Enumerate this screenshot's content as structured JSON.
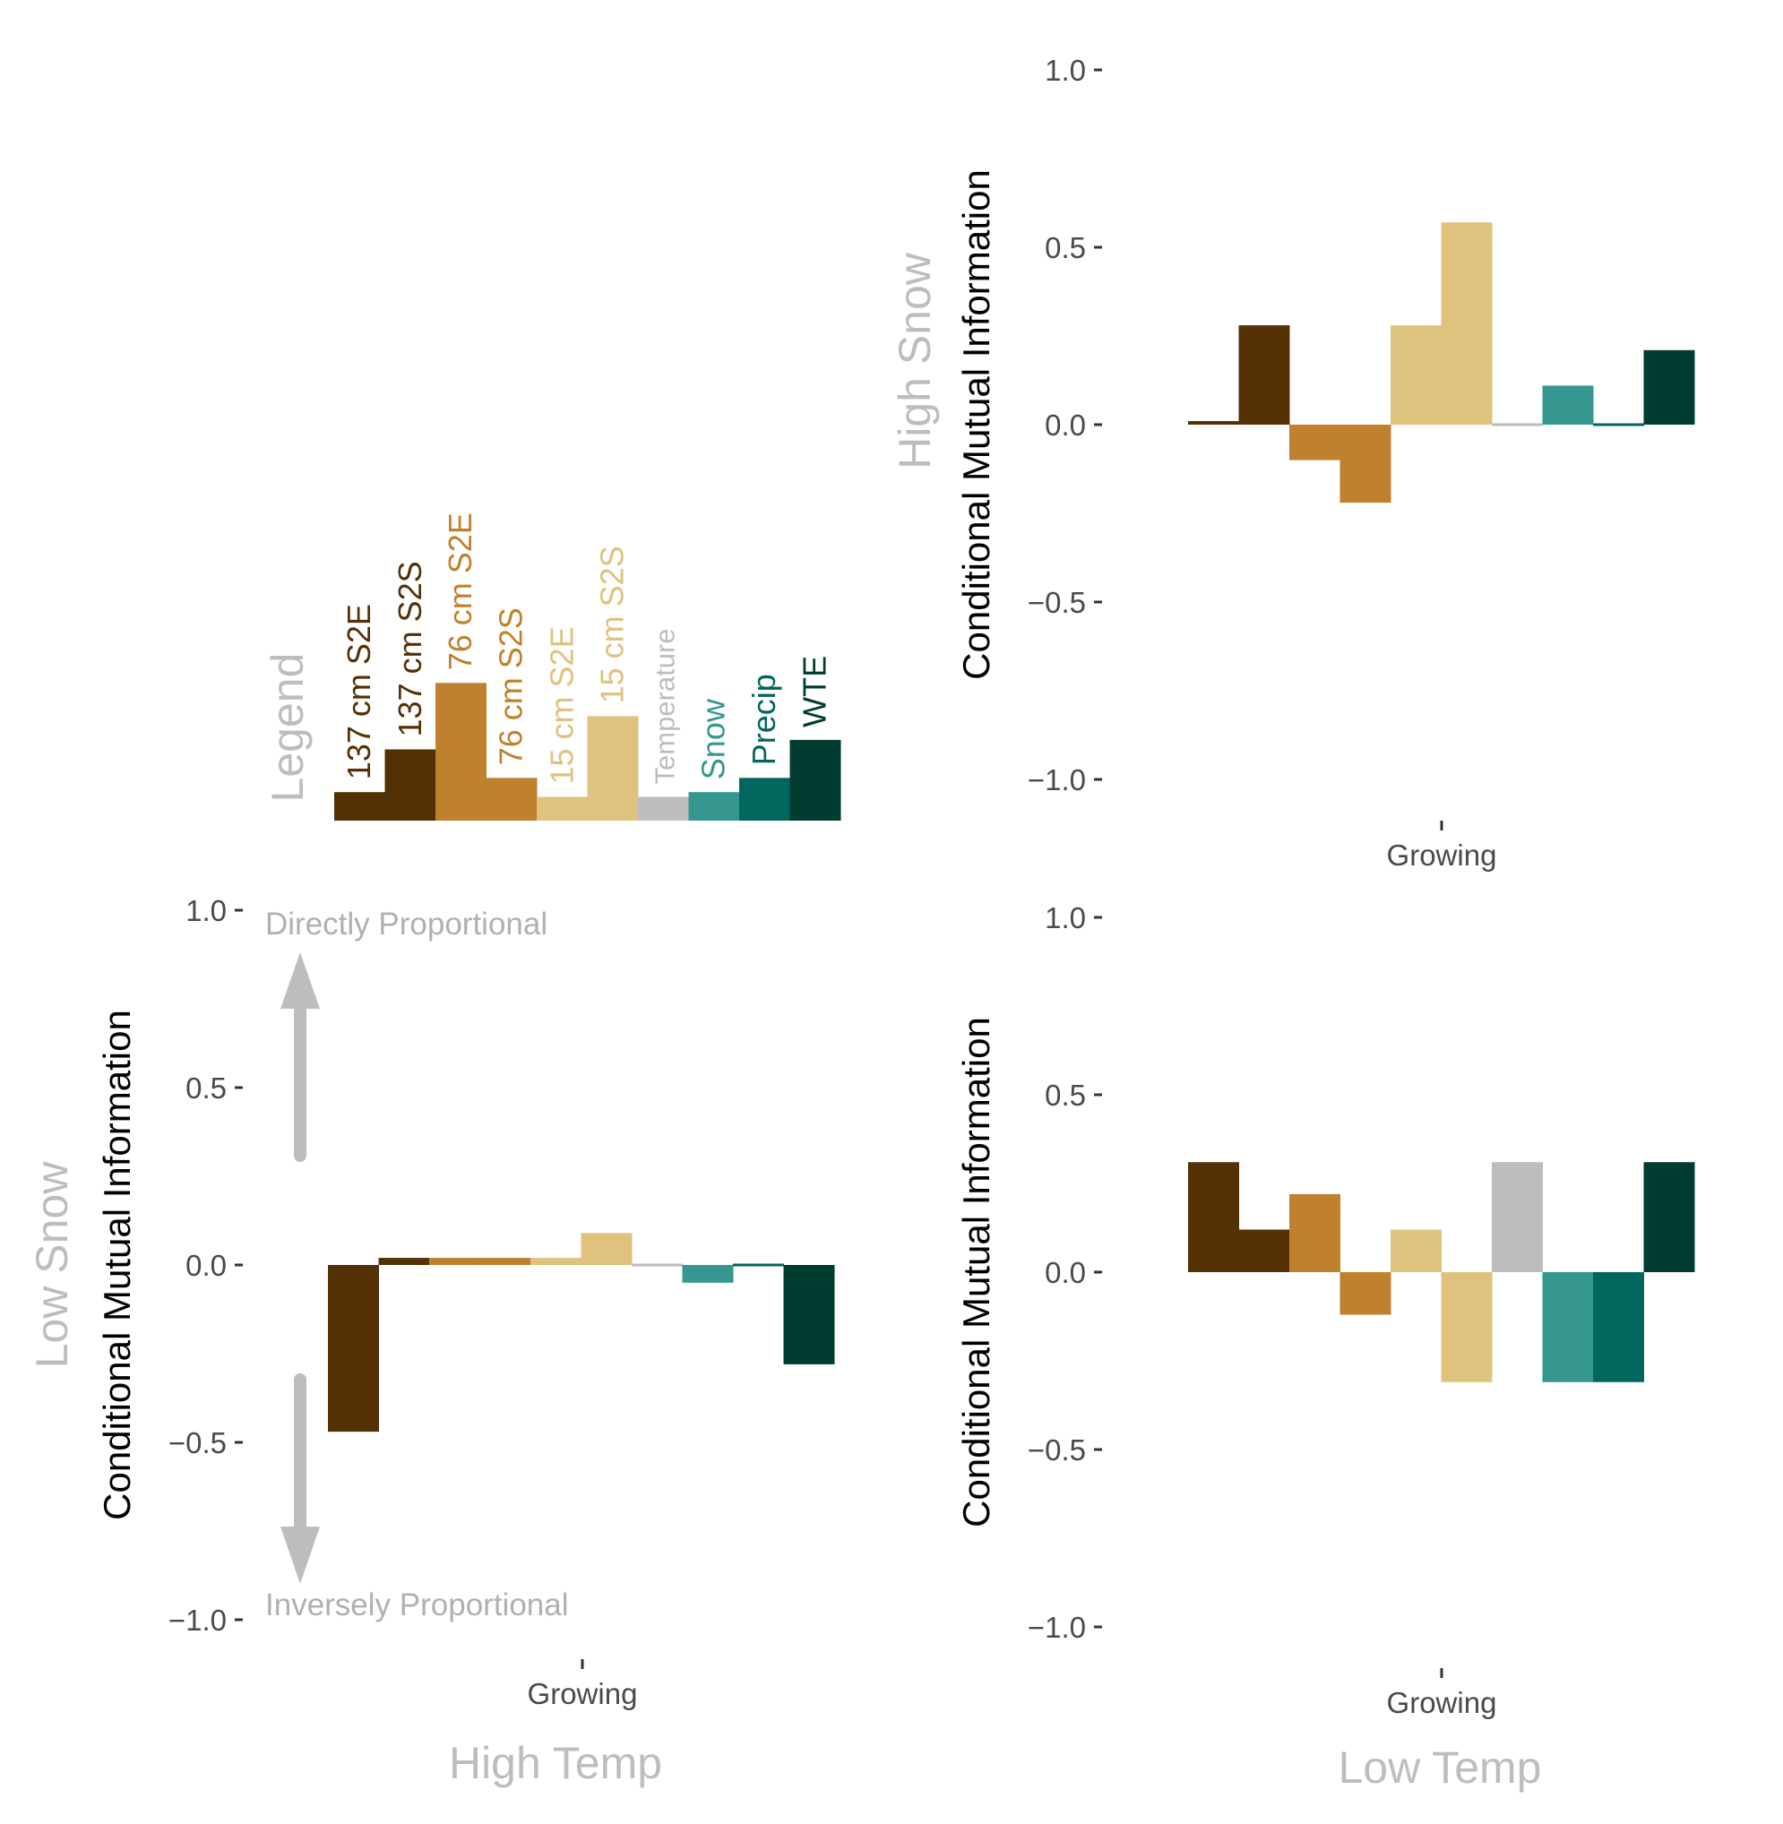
{
  "colors": {
    "grid_text": "#4a4a4a",
    "muted": "#bdbdbd",
    "arrow": "#bdbdbd"
  },
  "legend": {
    "title": "Legend",
    "values": [
      0.06,
      0.15,
      0.29,
      0.09,
      0.05,
      0.22,
      0.05,
      0.06,
      0.09,
      0.17
    ]
  },
  "series_meta": [
    {
      "name": "137 cm S2E",
      "color": "#543005"
    },
    {
      "name": "137 cm S2S",
      "color": "#543005"
    },
    {
      "name": "76 cm S2E",
      "color": "#BF812D"
    },
    {
      "name": "76 cm S2S",
      "color": "#BF812D"
    },
    {
      "name": "15 cm S2E",
      "color": "#DFC27D"
    },
    {
      "name": "15 cm S2S",
      "color": "#DFC27D"
    },
    {
      "name": "Temperature",
      "color": "#BDBDBD"
    },
    {
      "name": "Snow",
      "color": "#35978F"
    },
    {
      "name": "Precip",
      "color": "#01665E"
    },
    {
      "name": "WTE",
      "color": "#003C30"
    }
  ],
  "annotations": {
    "directly": "Directly Proportional",
    "inversely": "Inversely Proportional"
  },
  "chart_data": [
    {
      "type": "bar",
      "panel": "Low Snow / High Temp",
      "row_label": "Low Snow",
      "col_label": "High Temp",
      "ylabel": "Conditional Mutual Information",
      "xlabel": "",
      "categories": [
        "Growing"
      ],
      "yticks": [
        "1.0",
        "0.5",
        "0.0",
        "−0.5",
        "−1.0"
      ],
      "ylim": [
        -1.0,
        1.0
      ],
      "series": [
        {
          "name": "137 cm S2E",
          "values": [
            -0.47
          ]
        },
        {
          "name": "137 cm S2S",
          "values": [
            0.02
          ]
        },
        {
          "name": "76 cm S2E",
          "values": [
            0.02
          ]
        },
        {
          "name": "76 cm S2S",
          "values": [
            0.02
          ]
        },
        {
          "name": "15 cm S2E",
          "values": [
            0.02
          ]
        },
        {
          "name": "15 cm S2S",
          "values": [
            0.09
          ]
        },
        {
          "name": "Temperature",
          "values": [
            0.005
          ]
        },
        {
          "name": "Snow",
          "values": [
            -0.05
          ]
        },
        {
          "name": "Precip",
          "values": [
            -0.005
          ]
        },
        {
          "name": "WTE",
          "values": [
            -0.28
          ]
        }
      ]
    },
    {
      "type": "bar",
      "panel": "High Snow",
      "row_label": "High Snow",
      "col_label": "",
      "ylabel": "Conditional Mutual Information",
      "xlabel": "",
      "categories": [
        "Growing"
      ],
      "yticks": [
        "1.0",
        "0.5",
        "0.0",
        "−0.5",
        "−1.0"
      ],
      "ylim": [
        -1.0,
        1.0
      ],
      "series": [
        {
          "name": "137 cm S2E",
          "values": [
            0.01
          ]
        },
        {
          "name": "137 cm S2S",
          "values": [
            0.28
          ]
        },
        {
          "name": "76 cm S2E",
          "values": [
            -0.1
          ]
        },
        {
          "name": "76 cm S2S",
          "values": [
            -0.22
          ]
        },
        {
          "name": "15 cm S2E",
          "values": [
            0.28
          ]
        },
        {
          "name": "15 cm S2S",
          "values": [
            0.57
          ]
        },
        {
          "name": "Temperature",
          "values": [
            0.005
          ]
        },
        {
          "name": "Snow",
          "values": [
            0.11
          ]
        },
        {
          "name": "Precip",
          "values": [
            0.004
          ]
        },
        {
          "name": "WTE",
          "values": [
            0.21
          ]
        }
      ]
    },
    {
      "type": "bar",
      "panel": "Low Snow / Low Temp",
      "row_label": "",
      "col_label": "Low Temp",
      "ylabel": "Conditional Mutual Information",
      "xlabel": "",
      "categories": [
        "Growing"
      ],
      "yticks": [
        "1.0",
        "0.5",
        "0.0",
        "−0.5",
        "−1.0"
      ],
      "ylim": [
        -1.0,
        1.0
      ],
      "series": [
        {
          "name": "137 cm S2E",
          "values": [
            0.31
          ]
        },
        {
          "name": "137 cm S2S",
          "values": [
            0.12
          ]
        },
        {
          "name": "76 cm S2E",
          "values": [
            0.22
          ]
        },
        {
          "name": "76 cm S2S",
          "values": [
            -0.12
          ]
        },
        {
          "name": "15 cm S2E",
          "values": [
            0.12
          ]
        },
        {
          "name": "15 cm S2S",
          "values": [
            -0.31
          ]
        },
        {
          "name": "Temperature",
          "values": [
            0.31
          ]
        },
        {
          "name": "Snow",
          "values": [
            -0.31
          ]
        },
        {
          "name": "Precip",
          "values": [
            -0.31
          ]
        },
        {
          "name": "WTE",
          "values": [
            0.31
          ]
        }
      ]
    }
  ]
}
